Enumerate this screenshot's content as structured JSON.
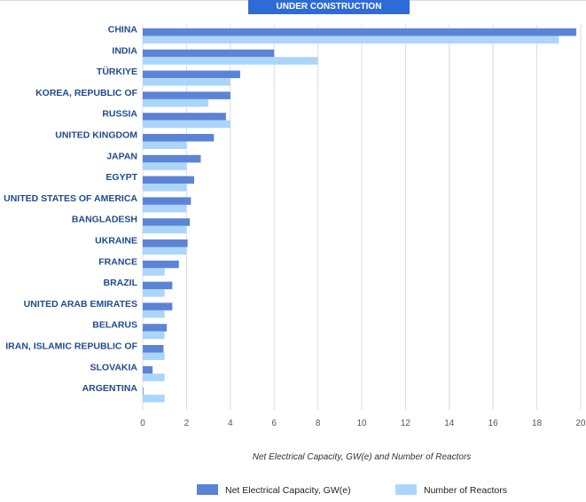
{
  "tab": {
    "label": "UNDER CONSTRUCTION"
  },
  "colors": {
    "series1": "#5b84d6",
    "series2": "#acd5fb",
    "grid": "#dcdcdc",
    "category_text": "#1f4b8f",
    "tab_bg": "#2f6bd7"
  },
  "chart_data": {
    "type": "bar",
    "orientation": "horizontal",
    "title": "",
    "xlabel": "Net Electrical Capacity, GW(e) and Number of Reactors",
    "ylabel": "",
    "xlim": [
      0,
      20
    ],
    "xticks": [
      0,
      2,
      4,
      6,
      8,
      10,
      12,
      14,
      16,
      18,
      20
    ],
    "grid": true,
    "legend_position": "bottom",
    "categories": [
      "CHINA",
      "INDIA",
      "TÜRKIYE",
      "KOREA, REPUBLIC OF",
      "RUSSIA",
      "UNITED KINGDOM",
      "JAPAN",
      "EGYPT",
      "UNITED STATES OF AMERICA",
      "BANGLADESH",
      "UKRAINE",
      "FRANCE",
      "BRAZIL",
      "UNITED ARAB EMIRATES",
      "BELARUS",
      "IRAN, ISLAMIC REPUBLIC OF",
      "SLOVAKIA",
      "ARGENTINA"
    ],
    "series": [
      {
        "name": "Net Electrical Capacity, GW(e)",
        "values": [
          19.8,
          6.0,
          4.45,
          4.0,
          3.8,
          3.25,
          2.65,
          2.35,
          2.2,
          2.15,
          2.05,
          1.65,
          1.35,
          1.35,
          1.1,
          0.95,
          0.45,
          0.03
        ]
      },
      {
        "name": "Number of Reactors",
        "values": [
          19,
          8,
          4,
          3,
          4,
          2,
          2,
          2,
          2,
          2,
          2,
          1,
          1,
          1,
          1,
          1,
          1,
          1
        ]
      }
    ]
  }
}
